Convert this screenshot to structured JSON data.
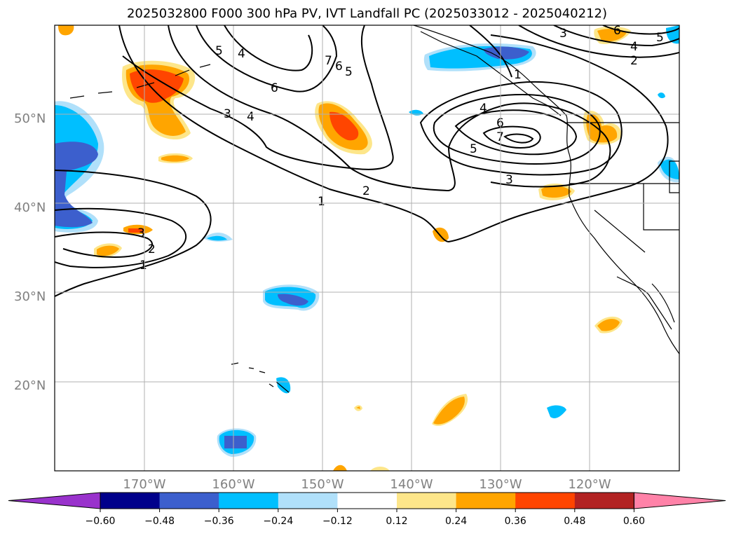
{
  "title": "2025032800 F000 300 hPa PV, IVT Landfall PC (2025033012 - 2025040212)",
  "map": {
    "lon_range": [
      -180,
      -110
    ],
    "lat_range": [
      10,
      60
    ],
    "lat_labels": [
      "20°N",
      "30°N",
      "40°N",
      "50°N"
    ],
    "lon_labels": [
      "170°W",
      "160°W",
      "150°W",
      "140°W",
      "130°W",
      "120°W"
    ],
    "grid": true
  },
  "colorbar": {
    "ticks": [
      "−0.60",
      "−0.48",
      "−0.36",
      "−0.24",
      "−0.12",
      "0.12",
      "0.24",
      "0.36",
      "0.48",
      "0.60"
    ],
    "colors": [
      "#9932cc",
      "#00008b",
      "#3c5fcd",
      "#00bfff",
      "#b0e0fa",
      "#ffffff",
      "#fde68a",
      "#ffa500",
      "#ff4500",
      "#b22222",
      "#ff82a8"
    ]
  },
  "contour_labels": [
    "1",
    "2",
    "3",
    "4",
    "5",
    "6",
    "7"
  ]
}
